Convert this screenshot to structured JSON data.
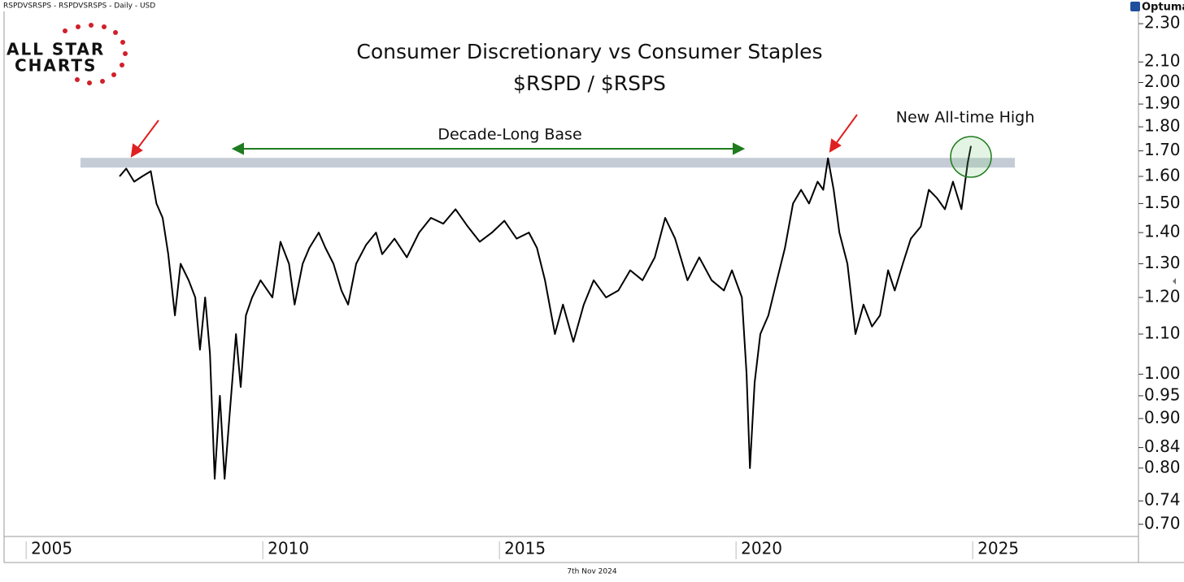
{
  "chart_data": {
    "type": "line",
    "source_label": "RSPDVSRSPS - RSPDVSRSPS - Daily - USD",
    "brand": "Optuma",
    "logo_lines": [
      "ALL STAR",
      "CHARTS"
    ],
    "title": "Consumer Discretionary vs Consumer Staples",
    "subtitle": "$RSPD / $RSPS",
    "annotations": [
      "Decade-Long Base",
      "New All-time High"
    ],
    "date_label": "7th Nov 2024",
    "log_scale": true,
    "color": "#000000",
    "band": [
      1.634,
      1.672
    ],
    "band_color": "#c5ccd6",
    "xlim": [
      2004.43,
      2028.4
    ],
    "xticks": [
      2005,
      2010,
      2015,
      2020,
      2025
    ],
    "ylim": [
      0.68,
      2.35
    ],
    "yticks": [
      {
        "value": 2.3,
        "label": "2.30"
      },
      {
        "value": 2.1,
        "label": "2.10"
      },
      {
        "value": 2,
        "label": "2.00"
      },
      {
        "value": 1.9,
        "label": "1.90"
      },
      {
        "value": 1.8,
        "label": "1.80"
      },
      {
        "value": 1.7,
        "label": "1.70"
      },
      {
        "value": 1.6,
        "label": "1.60"
      },
      {
        "value": 1.5,
        "label": "1.50"
      },
      {
        "value": 1.4,
        "label": "1.40"
      },
      {
        "value": 1.3,
        "label": "1.30"
      },
      {
        "value": 1.2,
        "label": "1.20"
      },
      {
        "value": 1.1,
        "label": "1.10"
      },
      {
        "value": 1,
        "label": "1.00"
      },
      0.95,
      {
        "value": 0.9,
        "label": "0.90"
      },
      0.84,
      {
        "value": 0.8,
        "label": "0.80"
      },
      0.74,
      {
        "value": 0.7,
        "label": "0.70"
      }
    ],
    "x": [
      2006.87,
      2007.01,
      2007.18,
      2007.35,
      2007.53,
      2007.65,
      2007.78,
      2007.9,
      2008.04,
      2008.16,
      2008.33,
      2008.47,
      2008.57,
      2008.68,
      2008.78,
      2008.88,
      2008.99,
      2009.09,
      2009.19,
      2009.33,
      2009.43,
      2009.54,
      2009.67,
      2009.85,
      2010.1,
      2010.27,
      2010.45,
      2010.57,
      2010.74,
      2010.88,
      2011.08,
      2011.22,
      2011.39,
      2011.56,
      2011.7,
      2011.87,
      2012.08,
      2012.29,
      2012.42,
      2012.68,
      2012.94,
      2013.2,
      2013.45,
      2013.71,
      2013.97,
      2014.23,
      2014.48,
      2014.74,
      2015.0,
      2015.26,
      2015.52,
      2015.69,
      2015.86,
      2016.07,
      2016.24,
      2016.46,
      2016.68,
      2016.89,
      2017.15,
      2017.41,
      2017.66,
      2017.92,
      2018.18,
      2018.4,
      2018.61,
      2018.87,
      2019.12,
      2019.38,
      2019.64,
      2019.81,
      2020.02,
      2020.12,
      2020.19,
      2020.29,
      2020.41,
      2020.58,
      2020.76,
      2020.93,
      2021.1,
      2021.27,
      2021.44,
      2021.62,
      2021.74,
      2021.84,
      2021.96,
      2022.08,
      2022.25,
      2022.42,
      2022.59,
      2022.77,
      2022.94,
      2023.11,
      2023.25,
      2023.42,
      2023.59,
      2023.8,
      2023.97,
      2024.14,
      2024.31,
      2024.48,
      2024.66,
      2024.79,
      2024.86
    ],
    "values": [
      1.6,
      1.63,
      1.58,
      1.6,
      1.62,
      1.5,
      1.45,
      1.33,
      1.15,
      1.3,
      1.25,
      1.2,
      1.06,
      1.2,
      1.05,
      0.78,
      0.95,
      0.78,
      0.9,
      1.1,
      0.97,
      1.15,
      1.2,
      1.25,
      1.2,
      1.37,
      1.3,
      1.18,
      1.3,
      1.35,
      1.4,
      1.35,
      1.3,
      1.22,
      1.18,
      1.3,
      1.36,
      1.4,
      1.33,
      1.38,
      1.32,
      1.4,
      1.45,
      1.43,
      1.48,
      1.42,
      1.37,
      1.4,
      1.44,
      1.38,
      1.4,
      1.35,
      1.25,
      1.1,
      1.18,
      1.08,
      1.18,
      1.25,
      1.2,
      1.22,
      1.28,
      1.25,
      1.32,
      1.45,
      1.38,
      1.25,
      1.32,
      1.25,
      1.22,
      1.28,
      1.2,
      1.0,
      0.8,
      0.98,
      1.1,
      1.15,
      1.25,
      1.35,
      1.5,
      1.55,
      1.5,
      1.58,
      1.55,
      1.67,
      1.55,
      1.4,
      1.3,
      1.1,
      1.18,
      1.12,
      1.15,
      1.28,
      1.22,
      1.3,
      1.38,
      1.42,
      1.55,
      1.52,
      1.48,
      1.58,
      1.48,
      1.65,
      1.72
    ]
  }
}
